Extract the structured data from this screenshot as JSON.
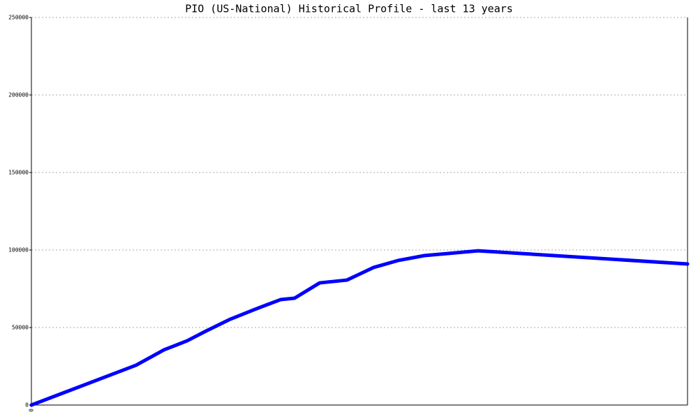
{
  "chart_data": {
    "type": "line",
    "title": "PIO (US-National) Historical Profile - last 13 years",
    "x": [
      0,
      150,
      190,
      223,
      250,
      285,
      320,
      357,
      377,
      413,
      452,
      490,
      525,
      563,
      640,
      940
    ],
    "series": [
      {
        "color": "#0000ff",
        "values": [
          0,
          25700,
          35600,
          41400,
          47700,
          55400,
          61700,
          68000,
          68900,
          78800,
          80600,
          88700,
          93200,
          96400,
          99500,
          91000
        ]
      }
    ],
    "xlim": [
      0,
      940
    ],
    "xticks": [
      0
    ],
    "ylim": [
      0,
      250000
    ],
    "yticks": [
      0,
      50000,
      100000,
      150000,
      200000,
      250000
    ],
    "grid": true
  }
}
